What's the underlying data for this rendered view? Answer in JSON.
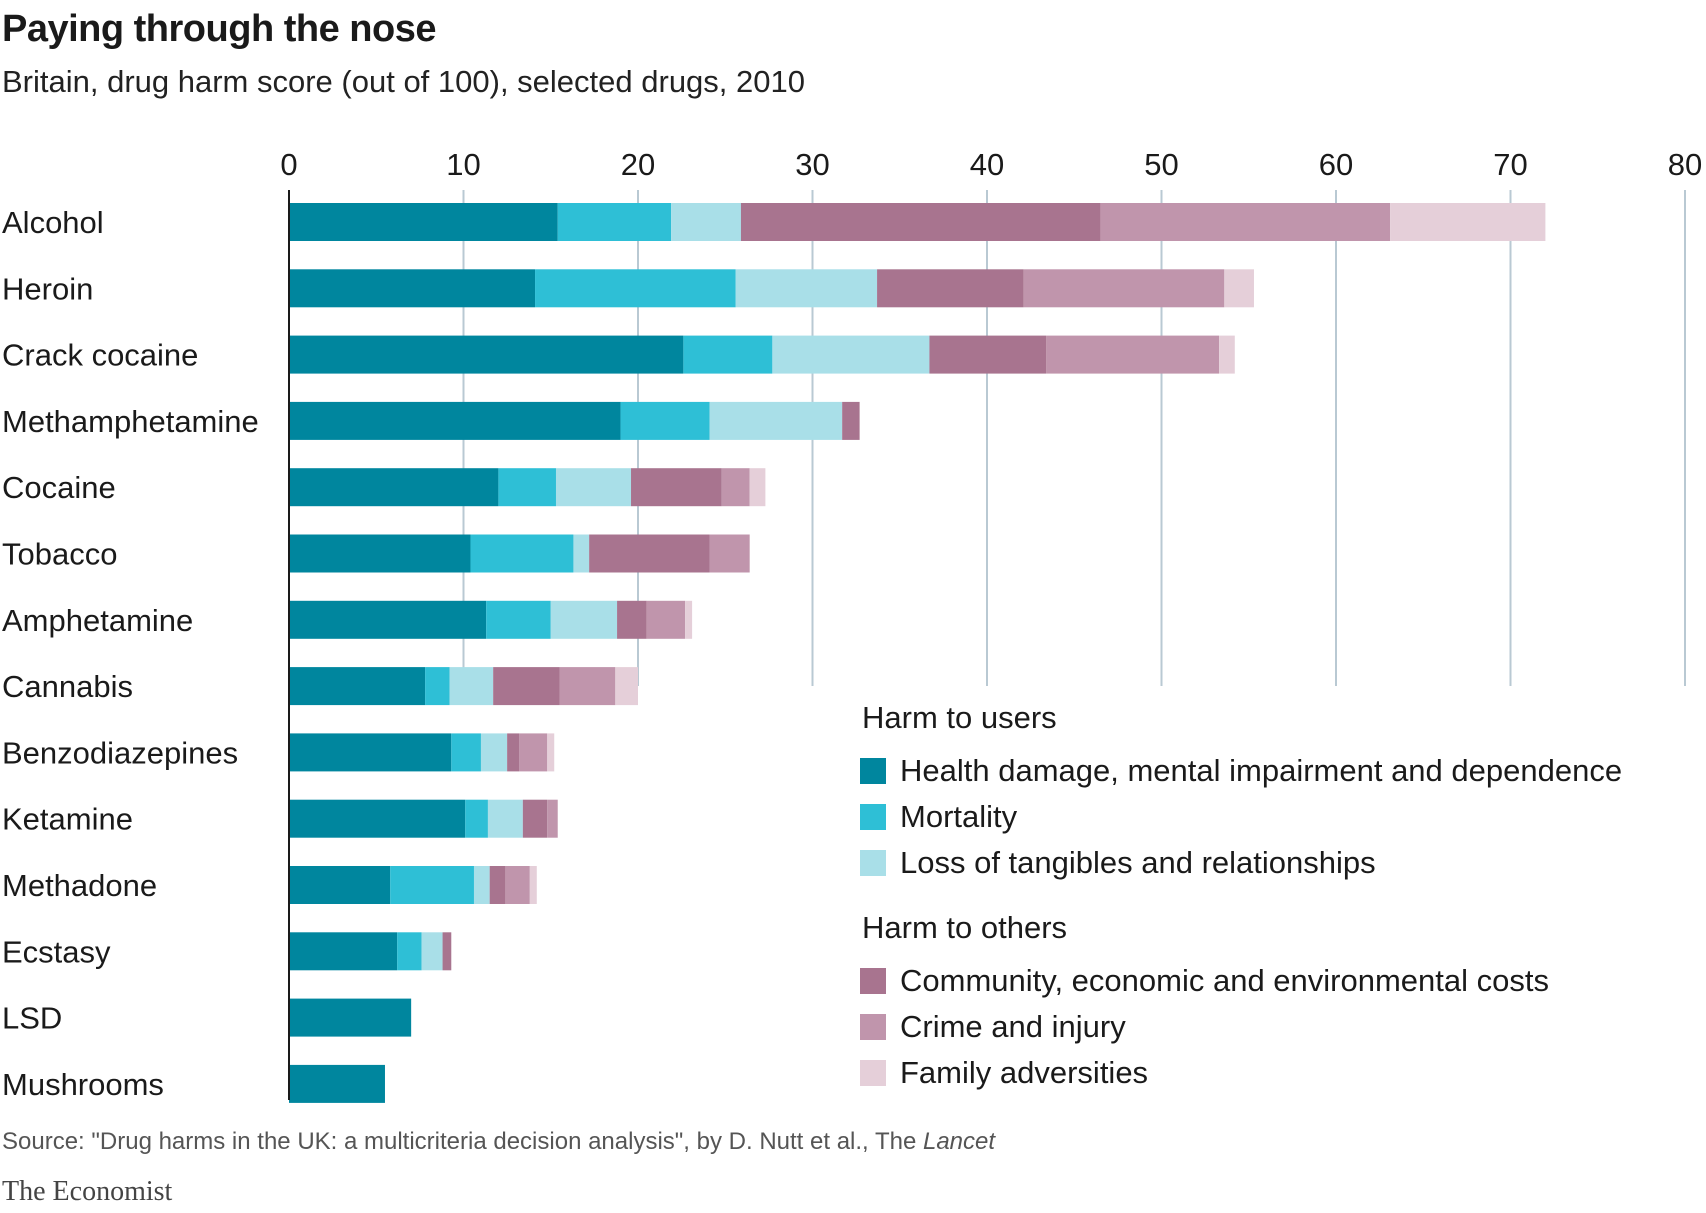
{
  "header": {
    "title": "Paying through the nose",
    "subtitle": "Britain, drug harm score (out of 100), selected drugs, 2010"
  },
  "legend": {
    "users_title": "Harm to users",
    "others_title": "Harm to others"
  },
  "footer": {
    "source_prefix": "Source: \"Drug harms in the UK: a multicriteria decision analysis\", by D. Nutt et al., The ",
    "source_journal": "Lancet",
    "brand": "The Economist"
  },
  "chart_data": {
    "type": "bar",
    "orientation": "horizontal",
    "stacked": true,
    "title": "Paying through the nose",
    "subtitle": "Britain, drug harm score (out of 100), selected drugs, 2010",
    "xlim": [
      0,
      80
    ],
    "xticks": [
      0,
      10,
      20,
      30,
      40,
      50,
      60,
      70,
      80
    ],
    "grid": true,
    "legend_position": "bottom-right",
    "categories": [
      "Alcohol",
      "Heroin",
      "Crack cocaine",
      "Methamphetamine",
      "Cocaine",
      "Tobacco",
      "Amphetamine",
      "Cannabis",
      "Benzodiazepines",
      "Ketamine",
      "Methadone",
      "Ecstasy",
      "LSD",
      "Mushrooms"
    ],
    "series": [
      {
        "name": "Health damage, mental impairment and dependence",
        "group": "Harm to users",
        "color": "#00869e",
        "values": [
          15.4,
          14.1,
          22.6,
          19.0,
          12.0,
          10.4,
          11.3,
          7.8,
          9.3,
          10.1,
          5.8,
          6.2,
          7.0,
          5.5
        ]
      },
      {
        "name": "Mortality",
        "group": "Harm to users",
        "color": "#2ebfd6",
        "values": [
          6.5,
          11.5,
          5.1,
          5.1,
          3.3,
          5.9,
          3.7,
          1.4,
          1.7,
          1.3,
          4.8,
          1.4,
          0.0,
          0.0
        ]
      },
      {
        "name": "Loss of tangibles and relationships",
        "group": "Harm to users",
        "color": "#a9dfe8",
        "values": [
          4.0,
          8.1,
          9.0,
          7.6,
          4.3,
          0.9,
          3.8,
          2.5,
          1.5,
          2.0,
          0.9,
          1.2,
          0.0,
          0.0
        ]
      },
      {
        "name": "Community, economic and environmental costs",
        "group": "Harm to others",
        "color": "#a8748f",
        "values": [
          20.6,
          8.4,
          6.7,
          1.0,
          5.2,
          6.9,
          1.7,
          3.8,
          0.7,
          1.4,
          0.9,
          0.5,
          0.0,
          0.0
        ]
      },
      {
        "name": "Crime and injury",
        "group": "Harm to others",
        "color": "#c095ac",
        "values": [
          16.6,
          11.5,
          9.9,
          0.0,
          1.6,
          2.3,
          2.2,
          3.2,
          1.6,
          0.6,
          1.4,
          0.0,
          0.0,
          0.0
        ]
      },
      {
        "name": "Family adversities",
        "group": "Harm to others",
        "color": "#e5cfd9",
        "values": [
          8.9,
          1.7,
          0.9,
          0.0,
          0.9,
          0.0,
          0.4,
          1.3,
          0.4,
          0.0,
          0.4,
          0.0,
          0.0,
          0.0
        ]
      }
    ]
  }
}
